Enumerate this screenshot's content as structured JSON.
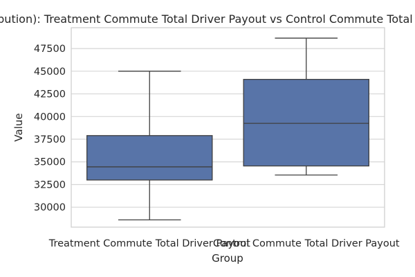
{
  "chart_data": {
    "type": "box",
    "title": "(Distribution): Treatment Commute Total Driver Payout vs Control Commute Total Driver Payout",
    "xlabel": "Group",
    "ylabel": "Value",
    "ylim": [
      27800,
      49800
    ],
    "yticks": [
      30000,
      32500,
      35000,
      37500,
      40000,
      42500,
      45000,
      47500
    ],
    "grid": true,
    "box_color": "#5874a8",
    "line_color": "#3f3f3f",
    "categories": [
      "Treatment Commute Total Driver Payout",
      "Control Commute Total Driver Payout"
    ],
    "boxes": [
      {
        "category": "Treatment Commute Total Driver Payout",
        "whisker_low": 28600,
        "q1": 33000,
        "median": 34450,
        "q3": 37900,
        "whisker_high": 45000
      },
      {
        "category": "Control Commute Total Driver Payout",
        "whisker_low": 33550,
        "q1": 34550,
        "median": 39250,
        "q3": 44100,
        "whisker_high": 48650
      }
    ]
  }
}
